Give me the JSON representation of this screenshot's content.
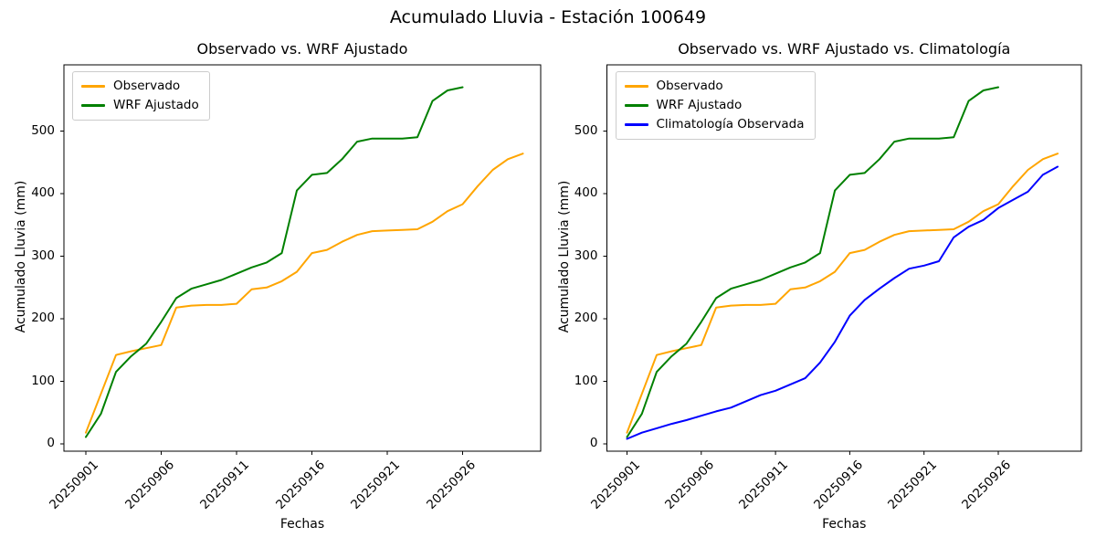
{
  "suptitle": "Acumulado Lluvia - Estación 100649",
  "background": "#ffffff",
  "axes_color": "#000000",
  "chart_data": [
    {
      "type": "line",
      "title": "Observado vs. WRF Ajustado",
      "xlabel": "Fechas",
      "ylabel": "Acumulado Lluvia (mm)",
      "x_dates": [
        "20250901",
        "20250902",
        "20250903",
        "20250904",
        "20250905",
        "20250906",
        "20250907",
        "20250908",
        "20250909",
        "20250910",
        "20250911",
        "20250912",
        "20250913",
        "20250914",
        "20250915",
        "20250916",
        "20250917",
        "20250918",
        "20250919",
        "20250920",
        "20250921",
        "20250922",
        "20250923",
        "20250924",
        "20250925",
        "20250926",
        "20250927",
        "20250928",
        "20250929",
        "20250930"
      ],
      "x_tick_labels": [
        "20250901",
        "20250906",
        "20250911",
        "20250916",
        "20250921",
        "20250926"
      ],
      "y_ticks": [
        0,
        100,
        200,
        300,
        400,
        500
      ],
      "grid": false,
      "legend_position": "upper left",
      "series": [
        {
          "name": "Observado",
          "color": "#FFA500",
          "values": [
            18,
            80,
            142,
            148,
            153,
            158,
            218,
            221,
            222,
            222,
            224,
            247,
            250,
            260,
            275,
            305,
            310,
            323,
            334,
            340,
            341,
            342,
            343,
            355,
            372,
            383,
            412,
            438,
            455,
            464
          ]
        },
        {
          "name": "WRF Ajustado",
          "color": "#008000",
          "values": [
            11,
            48,
            115,
            140,
            160,
            195,
            233,
            248,
            255,
            262,
            272,
            282,
            290,
            305,
            405,
            430,
            433,
            455,
            483,
            488,
            488,
            488,
            490,
            548,
            565,
            570
          ]
        }
      ]
    },
    {
      "type": "line",
      "title": "Observado vs. WRF Ajustado vs. Climatología",
      "xlabel": "Fechas",
      "ylabel": "Acumulado Lluvia (mm)",
      "x_dates": [
        "20250901",
        "20250902",
        "20250903",
        "20250904",
        "20250905",
        "20250906",
        "20250907",
        "20250908",
        "20250909",
        "20250910",
        "20250911",
        "20250912",
        "20250913",
        "20250914",
        "20250915",
        "20250916",
        "20250917",
        "20250918",
        "20250919",
        "20250920",
        "20250921",
        "20250922",
        "20250923",
        "20250924",
        "20250925",
        "20250926",
        "20250927",
        "20250928",
        "20250929",
        "20250930"
      ],
      "x_tick_labels": [
        "20250901",
        "20250906",
        "20250911",
        "20250916",
        "20250921",
        "20250926"
      ],
      "y_ticks": [
        0,
        100,
        200,
        300,
        400,
        500
      ],
      "grid": false,
      "legend_position": "upper left",
      "series": [
        {
          "name": "Observado",
          "color": "#FFA500",
          "values": [
            18,
            80,
            142,
            148,
            153,
            158,
            218,
            221,
            222,
            222,
            224,
            247,
            250,
            260,
            275,
            305,
            310,
            323,
            334,
            340,
            341,
            342,
            343,
            355,
            372,
            383,
            412,
            438,
            455,
            464
          ]
        },
        {
          "name": "WRF Ajustado",
          "color": "#008000",
          "values": [
            11,
            48,
            115,
            140,
            160,
            195,
            233,
            248,
            255,
            262,
            272,
            282,
            290,
            305,
            405,
            430,
            433,
            455,
            483,
            488,
            488,
            488,
            490,
            548,
            565,
            570
          ]
        },
        {
          "name": "Climatología Observada",
          "color": "#0000FF",
          "values": [
            8,
            18,
            25,
            32,
            38,
            45,
            52,
            58,
            68,
            78,
            85,
            95,
            105,
            130,
            163,
            205,
            230,
            248,
            265,
            280,
            285,
            292,
            330,
            347,
            358,
            377,
            390,
            403,
            430,
            443
          ]
        }
      ]
    }
  ]
}
